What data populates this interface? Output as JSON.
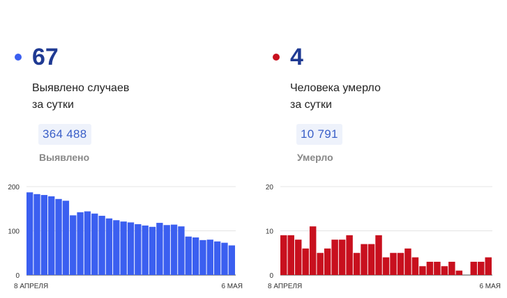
{
  "cases": {
    "count": "67",
    "label_line1": "Выявлено случаев",
    "label_line2": "за сутки",
    "total": "364 488",
    "total_label": "Выявлено",
    "accent": "#3b5ff0",
    "dot_color": "#3b5ff0"
  },
  "deaths": {
    "count": "4",
    "label_line1": "Человека умерло",
    "label_line2": "за сутки",
    "total": "10 791",
    "total_label": "Умерло",
    "accent": "#c8101e",
    "dot_color": "#c8101e"
  },
  "chart_data": [
    {
      "type": "bar",
      "ylim": [
        0,
        200
      ],
      "yticks": [
        "0",
        "100",
        "200"
      ],
      "xlabel_start": "8 АПРЕЛЯ",
      "xlabel_end": "6 МАЯ",
      "values": [
        187,
        183,
        181,
        178,
        172,
        168,
        135,
        142,
        144,
        139,
        134,
        128,
        124,
        121,
        119,
        115,
        112,
        109,
        118,
        113,
        114,
        110,
        87,
        85,
        79,
        80,
        76,
        73,
        67
      ],
      "color": "#3b5ff0"
    },
    {
      "type": "bar",
      "ylim": [
        0,
        20
      ],
      "yticks": [
        "0",
        "10",
        "20"
      ],
      "xlabel_start": "8 АПРЕЛЯ",
      "xlabel_end": "6 МАЯ",
      "values": [
        9,
        9,
        8,
        6,
        11,
        5,
        6,
        8,
        8,
        9,
        5,
        7,
        7,
        9,
        4,
        5,
        5,
        6,
        4,
        2,
        3,
        3,
        2,
        3,
        1,
        0,
        3,
        3,
        4
      ],
      "color": "#c8101e"
    }
  ]
}
